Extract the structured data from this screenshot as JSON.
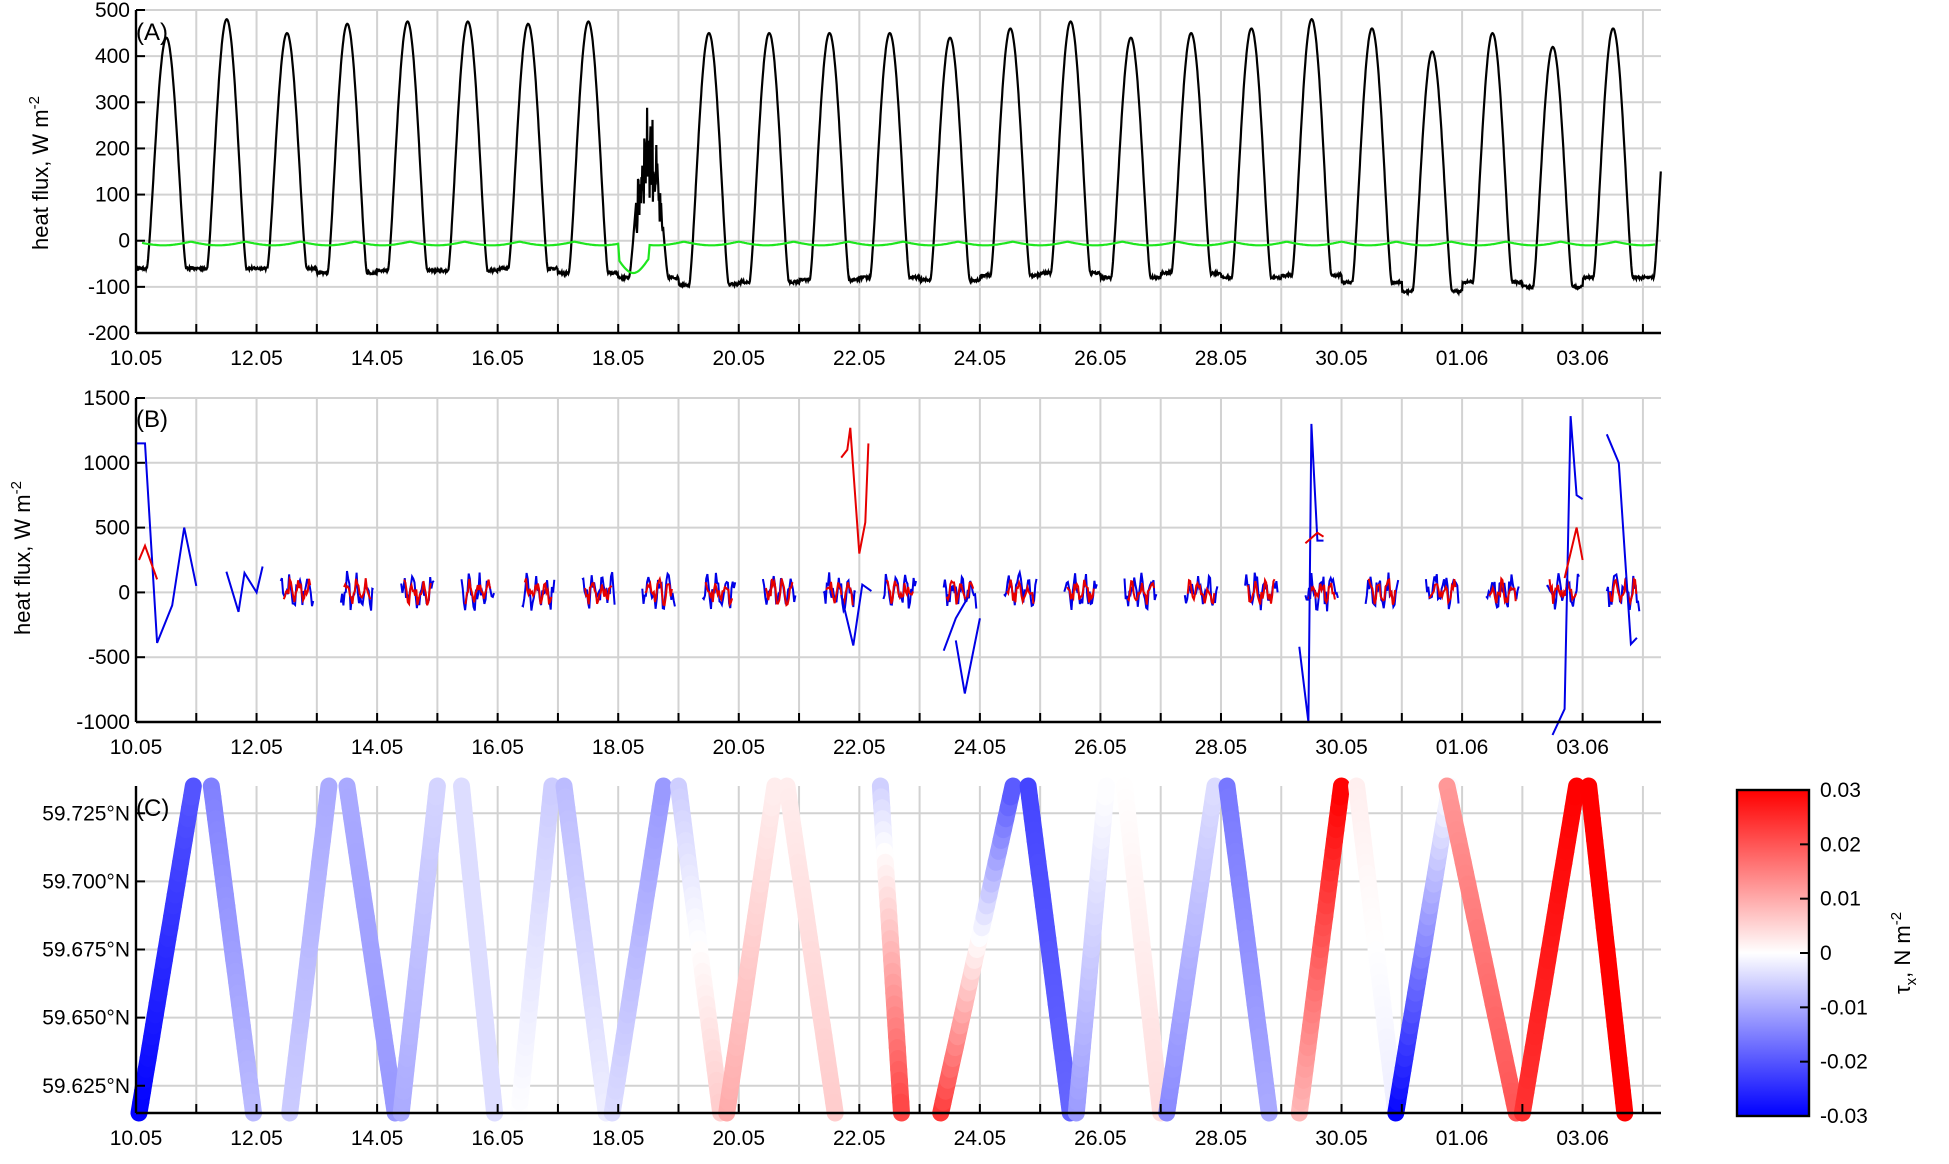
{
  "chart_data": [
    {
      "type": "line",
      "panel_label": "(A)",
      "ylabel": "heat flux, W m",
      "ylabel_sup": "-2",
      "ylim": [
        -200,
        500
      ],
      "yticks": [
        -200,
        -100,
        0,
        100,
        200,
        300,
        400,
        500
      ],
      "xlim_days": [
        0,
        25.3
      ],
      "xtick_labels": [
        "10.05",
        "12.05",
        "14.05",
        "16.05",
        "18.05",
        "20.05",
        "22.05",
        "24.05",
        "26.05",
        "28.05",
        "30.05",
        "01.06",
        "03.06"
      ],
      "grid": true,
      "series": [
        {
          "color": "#000000",
          "daily_peak_w_m2": [
            440,
            480,
            450,
            470,
            475,
            475,
            470,
            475,
            300,
            450,
            450,
            450,
            450,
            440,
            460,
            475,
            440,
            450,
            460,
            480,
            460,
            410,
            450,
            420,
            460
          ],
          "daily_night_min_w_m2": [
            -60,
            -60,
            -60,
            -70,
            -65,
            -65,
            -60,
            -70,
            -80,
            -95,
            -90,
            -85,
            -80,
            -85,
            -75,
            -70,
            -80,
            -70,
            -80,
            -75,
            -90,
            -110,
            -90,
            -100,
            -80
          ]
        },
        {
          "color": "#1ee61e",
          "range_w_m2": [
            -70,
            0
          ]
        }
      ]
    },
    {
      "type": "line",
      "panel_label": "(B)",
      "ylabel": "heat flux, W m",
      "ylabel_sup": "-2",
      "ylim": [
        -1000,
        1500
      ],
      "yticks": [
        -1000,
        -500,
        0,
        500,
        1000,
        1500
      ],
      "xlim_days": [
        0,
        25.3
      ],
      "xtick_labels": [
        "10.05",
        "12.05",
        "14.05",
        "16.05",
        "18.05",
        "20.05",
        "22.05",
        "24.05",
        "26.05",
        "28.05",
        "30.05",
        "01.06",
        "03.06"
      ],
      "grid": true,
      "series": [
        {
          "color": "#0000e6",
          "segments": [
            {
              "days": [
                0.0,
                0.15,
                0.35,
                0.6,
                0.8,
                1.0
              ],
              "values": [
                1150,
                1150,
                -390,
                -100,
                500,
                50
              ]
            },
            {
              "days": [
                1.5,
                1.7,
                1.8,
                2.0,
                2.1
              ],
              "values": [
                160,
                -150,
                150,
                0,
                200
              ]
            },
            {
              "days": [
                11.7,
                11.9,
                12.05,
                12.2
              ],
              "values": [
                -20,
                -410,
                60,
                10
              ]
            },
            {
              "days": [
                13.4,
                13.6,
                13.8
              ],
              "values": [
                -450,
                -200,
                -40
              ]
            },
            {
              "days": [
                13.6,
                13.75,
                14.0
              ],
              "values": [
                -370,
                -780,
                -200
              ]
            },
            {
              "days": [
                19.3,
                19.45,
                19.5,
                19.6,
                19.7
              ],
              "values": [
                -420,
                -1000,
                1300,
                400,
                400
              ]
            },
            {
              "days": [
                23.5,
                23.7,
                23.8,
                23.9,
                24.0
              ],
              "values": [
                -1100,
                -900,
                1360,
                750,
                720
              ]
            },
            {
              "days": [
                24.4,
                24.6,
                24.7,
                24.8,
                24.9
              ],
              "values": [
                1220,
                1000,
                300,
                -400,
                -350
              ]
            }
          ]
        },
        {
          "color": "#e60000",
          "segments": [
            {
              "days": [
                0.05,
                0.15,
                0.35
              ],
              "values": [
                250,
                360,
                100
              ]
            },
            {
              "days": [
                11.7,
                11.8,
                11.85,
                12.0,
                12.1,
                12.15
              ],
              "values": [
                1040,
                1100,
                1270,
                300,
                540,
                1150
              ]
            },
            {
              "days": [
                19.4,
                19.6,
                19.7
              ],
              "values": [
                380,
                460,
                430
              ]
            },
            {
              "days": [
                23.7,
                23.9,
                24.0
              ],
              "values": [
                110,
                500,
                250
              ]
            }
          ]
        }
      ]
    },
    {
      "type": "scatter",
      "panel_label": "(C)",
      "ylim_deg_n": [
        59.615,
        59.735
      ],
      "yticks": [
        "59.625°N",
        "59.650°N",
        "59.675°N",
        "59.700°N",
        "59.725°N"
      ],
      "xlim_days": [
        0,
        25.3
      ],
      "xtick_labels": [
        "10.05",
        "12.05",
        "14.05",
        "16.05",
        "18.05",
        "20.05",
        "22.05",
        "24.05",
        "26.05",
        "28.05",
        "30.05",
        "01.06",
        "03.06"
      ],
      "grid": true,
      "colorbar": {
        "label": "τ",
        "label_sub": "x",
        "label_rest": ", N m",
        "label_sup": "-2",
        "range": [
          -0.03,
          0.03
        ],
        "ticks": [
          "0.03",
          "0.02",
          "0.01",
          "0",
          "-0.01",
          "-0.02",
          "-0.03"
        ]
      },
      "transects": [
        {
          "x": [
            0.05,
            0.95
          ],
          "y": [
            59.615,
            59.735
          ],
          "tau_x": [
            -0.03,
            -0.02
          ]
        },
        {
          "x": [
            1.25,
            1.95
          ],
          "y": [
            59.735,
            59.615
          ],
          "tau_x": [
            -0.015,
            -0.008
          ]
        },
        {
          "x": [
            2.55,
            3.2
          ],
          "y": [
            59.615,
            59.735
          ],
          "tau_x": [
            -0.006,
            -0.01
          ]
        },
        {
          "x": [
            3.5,
            4.3
          ],
          "y": [
            59.735,
            59.615
          ],
          "tau_x": [
            -0.01,
            -0.012
          ]
        },
        {
          "x": [
            4.4,
            5.0
          ],
          "y": [
            59.615,
            59.735
          ],
          "tau_x": [
            -0.01,
            -0.005
          ]
        },
        {
          "x": [
            5.4,
            5.95
          ],
          "y": [
            59.735,
            59.615
          ],
          "tau_x": [
            -0.004,
            -0.004
          ]
        },
        {
          "x": [
            6.35,
            6.9
          ],
          "y": [
            59.615,
            59.735
          ],
          "tau_x": [
            0.0,
            -0.006
          ]
        },
        {
          "x": [
            7.1,
            7.8
          ],
          "y": [
            59.735,
            59.615
          ],
          "tau_x": [
            -0.008,
            -0.002
          ]
        },
        {
          "x": [
            7.9,
            8.75
          ],
          "y": [
            59.615,
            59.735
          ],
          "tau_x": [
            -0.004,
            -0.012
          ]
        },
        {
          "x": [
            9.0,
            9.7
          ],
          "y": [
            59.735,
            59.615
          ],
          "tau_x": [
            -0.006,
            0.006
          ]
        },
        {
          "x": [
            9.8,
            10.6
          ],
          "y": [
            59.615,
            59.735
          ],
          "tau_x": [
            0.01,
            0.002
          ]
        },
        {
          "x": [
            10.8,
            11.6
          ],
          "y": [
            59.735,
            59.615
          ],
          "tau_x": [
            0.002,
            0.006
          ]
        },
        {
          "x": [
            12.35,
            12.7
          ],
          "y": [
            59.735,
            59.615
          ],
          "tau_x": [
            -0.006,
            0.022
          ]
        },
        {
          "x": [
            13.35,
            14.55
          ],
          "y": [
            59.615,
            59.735
          ],
          "tau_x": [
            0.024,
            -0.02
          ]
        },
        {
          "x": [
            14.8,
            15.5
          ],
          "y": [
            59.735,
            59.615
          ],
          "tau_x": [
            -0.022,
            -0.018
          ]
        },
        {
          "x": [
            15.6,
            16.1
          ],
          "y": [
            59.615,
            59.735
          ],
          "tau_x": [
            -0.012,
            0.0
          ]
        },
        {
          "x": [
            16.4,
            17.0
          ],
          "y": [
            59.735,
            59.615
          ],
          "tau_x": [
            0.0,
            0.004
          ]
        },
        {
          "x": [
            17.1,
            17.9
          ],
          "y": [
            59.615,
            59.735
          ],
          "tau_x": [
            -0.014,
            -0.004
          ]
        },
        {
          "x": [
            18.1,
            18.8
          ],
          "y": [
            59.735,
            59.615
          ],
          "tau_x": [
            -0.016,
            -0.01
          ]
        },
        {
          "x": [
            19.3,
            20.0
          ],
          "y": [
            59.615,
            59.735
          ],
          "tau_x": [
            0.008,
            0.03
          ]
        },
        {
          "x": [
            20.25,
            20.9
          ],
          "y": [
            59.735,
            59.615
          ],
          "tau_x": [
            0.002,
            -0.002
          ]
        },
        {
          "x": [
            20.9,
            21.8
          ],
          "y": [
            59.615,
            59.735
          ],
          "tau_x": [
            -0.03,
            0.0
          ]
        },
        {
          "x": [
            21.75,
            22.9
          ],
          "y": [
            59.735,
            59.615
          ],
          "tau_x": [
            0.012,
            0.02
          ]
        },
        {
          "x": [
            23.0,
            23.9
          ],
          "y": [
            59.615,
            59.735
          ],
          "tau_x": [
            0.024,
            0.03
          ]
        },
        {
          "x": [
            24.1,
            24.7
          ],
          "y": [
            59.735,
            59.615
          ],
          "tau_x": [
            0.03,
            0.03
          ]
        }
      ]
    }
  ]
}
